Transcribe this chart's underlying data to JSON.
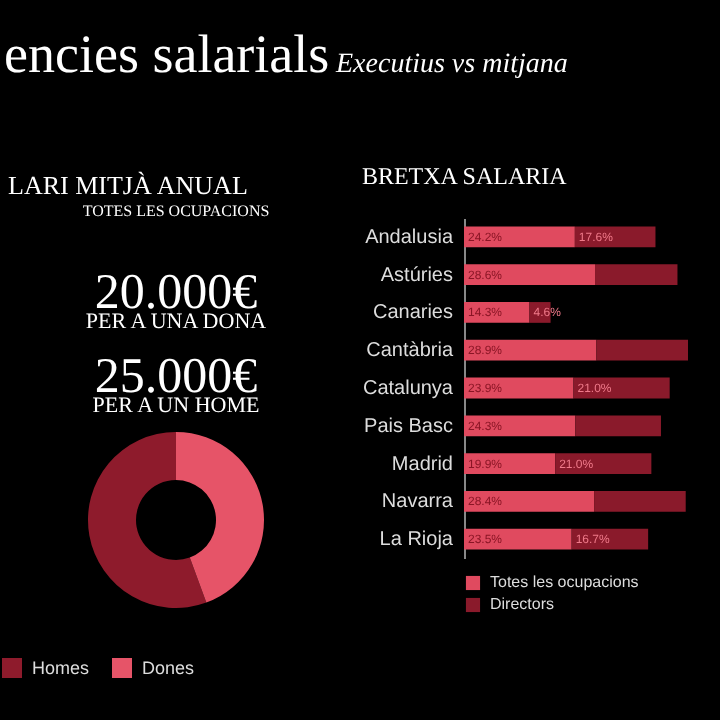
{
  "chart_data": [
    {
      "type": "other",
      "title": "encies salarials",
      "subtitle": "Executius vs mitjana",
      "annotations": [
        "LARI MITJÀ ANUAL"
      ]
    },
    {
      "type": "donut",
      "title": "TOTES LES OCUPACIONS",
      "annotations": [
        "20.000€",
        "PER A UNA DONA",
        "25.000€",
        "PER A UN HOME"
      ],
      "categories": [
        "Homes",
        "Dones"
      ],
      "values": [
        55.6,
        44.4
      ],
      "colors": [
        "#8e1b2c",
        "#e65468"
      ],
      "legend": "bottom"
    },
    {
      "type": "bar",
      "title": "BRETXA SALARIA",
      "orientation": "horizontal",
      "stacked": true,
      "legend": "bottom",
      "categories": [
        "Andalusia",
        "Astúries",
        "Canaries",
        "Cantàbria",
        "Catalunya",
        "Pais Basc",
        "Madrid",
        "Navarra",
        "La Rioja"
      ],
      "series": [
        {
          "name": "Totes les ocupacions",
          "color": "#e04a5f",
          "values": [
            24.2,
            28.6,
            14.3,
            28.9,
            23.9,
            24.3,
            19.9,
            28.4,
            23.5
          ],
          "value_labels": [
            "24.2%",
            "28.6%",
            "14.3%",
            "28.9%",
            "23.9%",
            "24.3%",
            "19.9%",
            "28.4%",
            "23.5%"
          ]
        },
        {
          "name": "Directors",
          "color": "#8a1a2b",
          "values": [
            17.6,
            18,
            4.6,
            20,
            21.0,
            18.7,
            21.0,
            20,
            16.7
          ],
          "value_labels": [
            "17.6%",
            null,
            "4.6%",
            null,
            "21.0%",
            null,
            "21.0%",
            null,
            "16.7%"
          ]
        }
      ]
    }
  ]
}
